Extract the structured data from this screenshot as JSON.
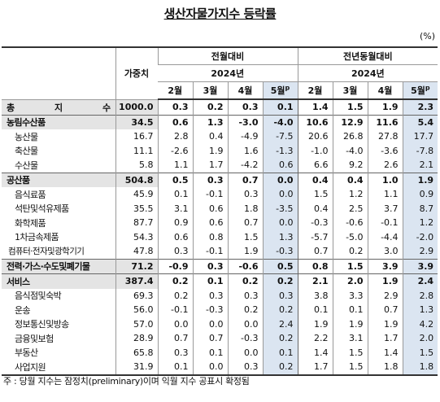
{
  "title": "생산자물가지수 등락률",
  "unit": "(%)",
  "header": {
    "weight": "가중치",
    "groups": [
      "전월대비",
      "전년동월대비"
    ],
    "year": "2024년",
    "months": [
      "2월",
      "3월",
      "4월",
      "5월"
    ],
    "prelim_mark": "p"
  },
  "total": {
    "label": "총 지 수",
    "weight": "1000.0",
    "mom": [
      "0.3",
      "0.2",
      "0.3",
      "0.1"
    ],
    "yoy": [
      "1.4",
      "1.5",
      "1.9",
      "2.3"
    ]
  },
  "sections": [
    {
      "label": "농림수산품",
      "weight": "34.5",
      "mom": [
        "0.6",
        "1.3",
        "-3.0",
        "-4.0"
      ],
      "yoy": [
        "10.6",
        "12.9",
        "11.6",
        "5.4"
      ],
      "items": [
        {
          "label": "농산물",
          "weight": "16.7",
          "mom": [
            "2.8",
            "0.4",
            "-4.9",
            "-7.5"
          ],
          "yoy": [
            "20.6",
            "26.8",
            "27.8",
            "17.7"
          ]
        },
        {
          "label": "축산물",
          "weight": "11.1",
          "mom": [
            "-2.6",
            "1.9",
            "1.6",
            "-1.3"
          ],
          "yoy": [
            "-1.0",
            "-4.0",
            "-3.6",
            "-7.8"
          ]
        },
        {
          "label": "수산물",
          "weight": "5.8",
          "mom": [
            "1.1",
            "1.7",
            "-4.2",
            "0.6"
          ],
          "yoy": [
            "6.6",
            "9.2",
            "2.6",
            "2.1"
          ]
        }
      ]
    },
    {
      "label": "공산품",
      "weight": "504.8",
      "mom": [
        "0.5",
        "0.3",
        "0.7",
        "0.0"
      ],
      "yoy": [
        "0.4",
        "0.4",
        "1.0",
        "1.9"
      ],
      "items": [
        {
          "label": "음식료품",
          "weight": "45.9",
          "mom": [
            "0.1",
            "-0.1",
            "0.3",
            "0.0"
          ],
          "yoy": [
            "1.5",
            "1.2",
            "1.1",
            "0.9"
          ]
        },
        {
          "label": "석탄및석유제품",
          "weight": "35.5",
          "mom": [
            "3.1",
            "0.6",
            "1.8",
            "-3.5"
          ],
          "yoy": [
            "0.4",
            "2.5",
            "3.7",
            "8.7"
          ]
        },
        {
          "label": "화학제품",
          "weight": "87.7",
          "mom": [
            "0.9",
            "0.6",
            "0.7",
            "0.0"
          ],
          "yoy": [
            "-0.3",
            "-0.6",
            "-0.1",
            "1.2"
          ]
        },
        {
          "label": "1차금속제품",
          "weight": "54.3",
          "mom": [
            "0.6",
            "0.8",
            "1.5",
            "1.3"
          ],
          "yoy": [
            "-5.7",
            "-5.0",
            "-4.4",
            "-2.0"
          ]
        },
        {
          "label": "컴퓨터·전자및광학기기",
          "weight": "47.8",
          "mom": [
            "0.3",
            "-0.1",
            "1.9",
            "-0.3"
          ],
          "yoy": [
            "0.7",
            "0.2",
            "3.0",
            "2.9"
          ]
        }
      ]
    },
    {
      "label": "전력·가스·수도및폐기물",
      "weight": "71.2",
      "mom": [
        "-0.9",
        "0.3",
        "-0.6",
        "0.5"
      ],
      "yoy": [
        "0.8",
        "1.5",
        "3.9",
        "3.9"
      ],
      "items": []
    },
    {
      "label": "서비스",
      "weight": "387.4",
      "mom": [
        "0.2",
        "0.1",
        "0.2",
        "0.2"
      ],
      "yoy": [
        "2.1",
        "2.0",
        "1.9",
        "2.4"
      ],
      "items": [
        {
          "label": "음식점및숙박",
          "weight": "69.3",
          "mom": [
            "0.2",
            "0.3",
            "0.3",
            "0.3"
          ],
          "yoy": [
            "3.8",
            "3.3",
            "2.9",
            "2.8"
          ]
        },
        {
          "label": "운송",
          "weight": "56.0",
          "mom": [
            "-0.1",
            "-0.3",
            "0.2",
            "0.2"
          ],
          "yoy": [
            "0.1",
            "0.1",
            "0.7",
            "1.3"
          ]
        },
        {
          "label": "정보통신및방송",
          "weight": "57.0",
          "mom": [
            "0.0",
            "0.0",
            "0.0",
            "2.4"
          ],
          "yoy": [
            "1.9",
            "1.9",
            "1.9",
            "4.2"
          ]
        },
        {
          "label": "금융및보험",
          "weight": "28.9",
          "mom": [
            "0.7",
            "0.7",
            "-0.3",
            "0.2"
          ],
          "yoy": [
            "2.2",
            "3.1",
            "1.7",
            "2.0"
          ]
        },
        {
          "label": "부동산",
          "weight": "65.8",
          "mom": [
            "0.3",
            "0.1",
            "0.0",
            "0.1"
          ],
          "yoy": [
            "1.4",
            "1.5",
            "1.4",
            "1.5"
          ]
        },
        {
          "label": "사업지원",
          "weight": "31.9",
          "mom": [
            "0.1",
            "0.0",
            "0.3",
            "0.2"
          ],
          "yoy": [
            "1.7",
            "1.5",
            "1.8",
            "1.8"
          ]
        }
      ]
    }
  ],
  "footnote": "주 : 당월 지수는 잠정치(preliminary)이며 익월 지수 공표시 확정됨"
}
